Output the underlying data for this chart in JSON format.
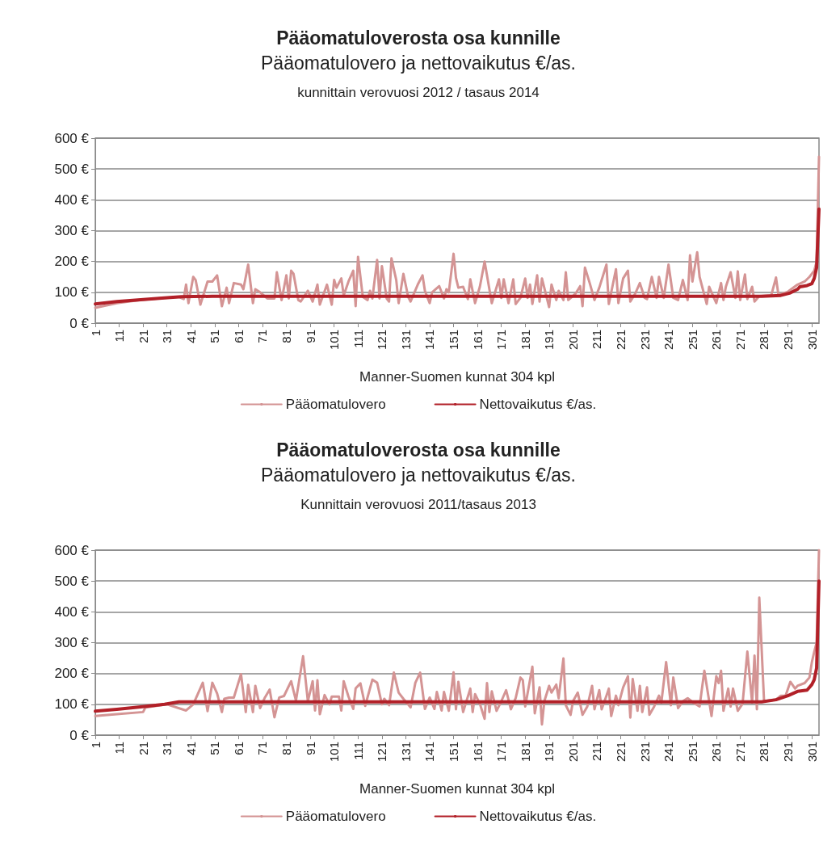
{
  "chart_data": [
    {
      "type": "line",
      "title": "Pääomatuloverosta osa kunnille",
      "subtitle": "Pääomatulovero ja nettovaikutus €/as.",
      "annotations": [
        "kunnittain verovuosi 2012 / tasaus 2014"
      ],
      "xlabel": "Manner-Suomen kunnat 304 kpl",
      "xlim": [
        1,
        304
      ],
      "xticks": [
        1,
        11,
        21,
        31,
        41,
        51,
        61,
        71,
        81,
        91,
        101,
        111,
        121,
        131,
        141,
        151,
        161,
        171,
        181,
        191,
        201,
        211,
        221,
        231,
        241,
        251,
        261,
        271,
        281,
        291,
        301
      ],
      "ylim": [
        0,
        600
      ],
      "yticks": [
        {
          "value": 0,
          "label": "0 €"
        },
        {
          "value": 100,
          "label": "100 €"
        },
        {
          "value": 200,
          "label": "200 €"
        },
        {
          "value": 300,
          "label": "300 €"
        },
        {
          "value": 400,
          "label": "400 €"
        },
        {
          "value": 500,
          "label": "500 €"
        },
        {
          "value": 600,
          "label": "600 €"
        }
      ],
      "grid": "y",
      "legend": "bottom",
      "marker": "none",
      "series": [
        {
          "name": "Pääomatulovero",
          "color": "#d49494",
          "x": [
            1,
            10,
            20,
            30,
            36,
            38,
            39,
            40,
            42,
            43,
            45,
            48,
            50,
            52,
            54,
            56,
            57,
            59,
            62,
            63,
            65,
            67,
            68,
            70,
            73,
            76,
            77,
            79,
            81,
            82,
            83,
            84,
            86,
            87,
            90,
            92,
            94,
            95,
            98,
            100,
            101,
            102,
            104,
            105,
            107,
            109,
            110,
            111,
            113,
            115,
            116,
            117,
            119,
            120,
            121,
            123,
            124,
            125,
            127,
            128,
            130,
            132,
            133,
            136,
            138,
            139,
            141,
            142,
            145,
            147,
            148,
            149,
            151,
            152,
            153,
            155,
            157,
            158,
            160,
            162,
            164,
            167,
            170,
            171,
            172,
            174,
            176,
            177,
            179,
            181,
            182,
            183,
            184,
            186,
            187,
            188,
            191,
            192,
            194,
            195,
            197,
            198,
            199,
            202,
            204,
            205,
            206,
            208,
            210,
            212,
            215,
            216,
            219,
            220,
            222,
            224,
            225,
            227,
            229,
            231,
            232,
            234,
            236,
            237,
            239,
            241,
            243,
            245,
            247,
            249,
            250,
            251,
            253,
            254,
            257,
            258,
            260,
            261,
            263,
            264,
            265,
            267,
            269,
            270,
            271,
            273,
            274,
            276,
            277,
            279,
            284,
            286,
            287,
            291,
            295,
            298,
            300,
            302,
            303,
            304
          ],
          "values": [
            50,
            65,
            75,
            82,
            85,
            78,
            125,
            65,
            150,
            140,
            60,
            135,
            135,
            155,
            55,
            115,
            65,
            130,
            125,
            110,
            190,
            65,
            110,
            100,
            80,
            80,
            165,
            75,
            155,
            80,
            170,
            160,
            75,
            70,
            105,
            70,
            125,
            60,
            125,
            60,
            140,
            115,
            145,
            90,
            135,
            170,
            55,
            215,
            85,
            75,
            105,
            80,
            205,
            80,
            185,
            80,
            70,
            210,
            140,
            65,
            160,
            85,
            70,
            125,
            155,
            105,
            65,
            100,
            120,
            80,
            110,
            100,
            225,
            147,
            115,
            118,
            78,
            142,
            65,
            118,
            200,
            65,
            142,
            82,
            142,
            65,
            142,
            62,
            82,
            145,
            82,
            125,
            62,
            155,
            70,
            145,
            52,
            125,
            75,
            105,
            75,
            165,
            75,
            95,
            120,
            55,
            180,
            130,
            75,
            115,
            190,
            62,
            175,
            65,
            145,
            170,
            70,
            95,
            130,
            82,
            78,
            150,
            82,
            150,
            82,
            190,
            82,
            75,
            140,
            75,
            220,
            135,
            230,
            150,
            62,
            118,
            82,
            65,
            130,
            75,
            118,
            165,
            82,
            168,
            75,
            158,
            78,
            118,
            70,
            88,
            90,
            148,
            92,
            102,
            125,
            135,
            150,
            170,
            200,
            540
          ]
        },
        {
          "name": "Nettovaikutus €/as.",
          "color": "#b22028",
          "x": [
            1,
            10,
            20,
            30,
            37,
            50,
            280,
            288,
            292,
            295,
            296,
            299,
            301,
            302,
            303,
            304
          ],
          "values": [
            62,
            70,
            76,
            82,
            86,
            87,
            87,
            90,
            98,
            110,
            118,
            122,
            128,
            145,
            180,
            370
          ]
        }
      ]
    },
    {
      "type": "line",
      "title": "Pääomatuloverosta osa kunnille",
      "subtitle": "Pääomatulovero ja nettovaikutus €/as.",
      "annotations": [
        "Kunnittain verovuosi 2011/tasaus 2013"
      ],
      "xlabel": "Manner-Suomen kunnat 304 kpl",
      "xlim": [
        1,
        304
      ],
      "xticks": [
        1,
        11,
        21,
        31,
        41,
        51,
        61,
        71,
        81,
        91,
        101,
        111,
        121,
        131,
        141,
        151,
        161,
        171,
        181,
        191,
        201,
        211,
        221,
        231,
        241,
        251,
        261,
        271,
        281,
        291,
        301
      ],
      "ylim": [
        0,
        600
      ],
      "yticks": [
        {
          "value": 0,
          "label": "0 €"
        },
        {
          "value": 100,
          "label": "100 €"
        },
        {
          "value": 200,
          "label": "200 €"
        },
        {
          "value": 300,
          "label": "300 €"
        },
        {
          "value": 400,
          "label": "400 €"
        },
        {
          "value": 500,
          "label": "500 €"
        },
        {
          "value": 600,
          "label": "600 €"
        }
      ],
      "grid": "y",
      "legend": "bottom",
      "marker": "none",
      "series": [
        {
          "name": "Pääomatulovero",
          "color": "#d49494",
          "x": [
            1,
            10,
            21,
            22,
            31,
            39,
            42,
            46,
            48,
            50,
            52,
            54,
            55,
            57,
            59,
            62,
            64,
            65,
            67,
            68,
            70,
            72,
            74,
            76,
            78,
            80,
            83,
            85,
            88,
            90,
            92,
            93,
            94,
            95,
            97,
            99,
            100,
            103,
            104,
            105,
            107,
            109,
            110,
            112,
            114,
            117,
            119,
            121,
            122,
            124,
            126,
            128,
            130,
            133,
            135,
            137,
            139,
            141,
            143,
            144,
            146,
            147,
            149,
            151,
            152,
            153,
            155,
            158,
            159,
            160,
            162,
            164,
            165,
            166,
            167,
            169,
            171,
            173,
            175,
            177,
            179,
            180,
            181,
            184,
            185,
            187,
            188,
            189,
            191,
            192,
            194,
            195,
            197,
            198,
            200,
            201,
            203,
            205,
            207,
            209,
            210,
            212,
            213,
            215,
            216,
            217,
            219,
            220,
            222,
            224,
            225,
            226,
            228,
            229,
            230,
            232,
            233,
            235,
            237,
            238,
            240,
            242,
            243,
            245,
            247,
            249,
            252,
            254,
            256,
            259,
            261,
            262,
            263,
            264,
            266,
            267,
            268,
            270,
            272,
            274,
            276,
            277,
            278,
            279,
            281,
            286,
            288,
            290,
            292,
            294,
            295,
            298,
            300,
            301,
            302,
            303,
            304
          ],
          "values": [
            62,
            68,
            75,
            90,
            100,
            80,
            100,
            170,
            78,
            170,
            135,
            75,
            118,
            122,
            122,
            198,
            75,
            163,
            75,
            160,
            88,
            122,
            148,
            58,
            122,
            127,
            175,
            112,
            256,
            110,
            175,
            80,
            178,
            68,
            130,
            100,
            125,
            125,
            80,
            175,
            125,
            85,
            152,
            168,
            95,
            180,
            170,
            100,
            118,
            97,
            203,
            138,
            118,
            90,
            170,
            203,
            85,
            122,
            85,
            140,
            80,
            140,
            79,
            204,
            84,
            173,
            75,
            151,
            75,
            133,
            102,
            53,
            169,
            75,
            142,
            79,
            110,
            146,
            84,
            120,
            187,
            178,
            93,
            222,
            71,
            155,
            35,
            110,
            160,
            138,
            164,
            120,
            249,
            97,
            66,
            110,
            138,
            66,
            93,
            160,
            84,
            146,
            84,
            128,
            151,
            62,
            128,
            97,
            155,
            191,
            57,
            182,
            79,
            160,
            75,
            155,
            66,
            93,
            128,
            106,
            237,
            97,
            187,
            88,
            110,
            120,
            102,
            93,
            209,
            62,
            191,
            169,
            209,
            79,
            151,
            93,
            151,
            79,
            102,
            271,
            106,
            258,
            84,
            446,
            110,
            115,
            128,
            128,
            173,
            151,
            160,
            169,
            187,
            236,
            270,
            300,
            600
          ]
        },
        {
          "name": "Nettovaikutus €/as.",
          "color": "#b22028",
          "x": [
            1,
            10,
            20,
            30,
            36,
            50,
            280,
            286,
            291,
            295,
            299,
            301,
            302,
            303,
            304
          ],
          "values": [
            78,
            84,
            92,
            100,
            108,
            108,
            108,
            115,
            128,
            142,
            146,
            164,
            180,
            218,
            500
          ]
        }
      ]
    }
  ]
}
